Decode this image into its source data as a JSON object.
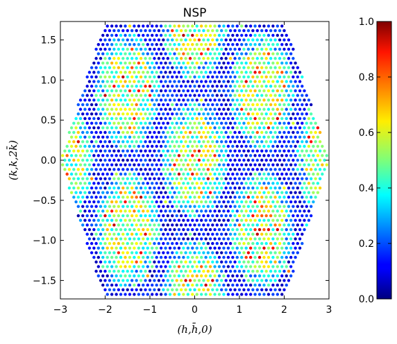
{
  "chart_data": {
    "type": "scatter",
    "title": "NSP",
    "xlabel": "(h,h̄,0)",
    "ylabel": "(k,k,2k̄)",
    "xlim": [
      -3,
      3
    ],
    "ylim": [
      -1.73,
      1.73
    ],
    "xticks": [
      "−3",
      "−2",
      "−1",
      "0",
      "1",
      "2",
      "3"
    ],
    "xtick_values": [
      -3,
      -2,
      -1,
      0,
      1,
      2,
      3
    ],
    "yticks": [
      "−1.5",
      "−1.0",
      "−0.5",
      "0.0",
      "0.5",
      "1.0",
      "1.5"
    ],
    "ytick_values": [
      -1.5,
      -1.0,
      -0.5,
      0.0,
      0.5,
      1.0,
      1.5
    ],
    "grid": false,
    "colormap": "jet",
    "colorbar": {
      "range": [
        0,
        1
      ],
      "ticks": [
        "0.0",
        "0.2",
        "0.4",
        "0.6",
        "0.8",
        "1.0"
      ],
      "tick_values": [
        0,
        0.2,
        0.4,
        0.6,
        0.8,
        1.0
      ]
    },
    "points": {
      "lattice": "triangular",
      "x_spacing": 0.1,
      "y_spacing": 0.0577,
      "boundary": "hexagon",
      "boundary_radius": 3.0,
      "description_of_values": "intensity 0..1 per lattice point"
    }
  }
}
